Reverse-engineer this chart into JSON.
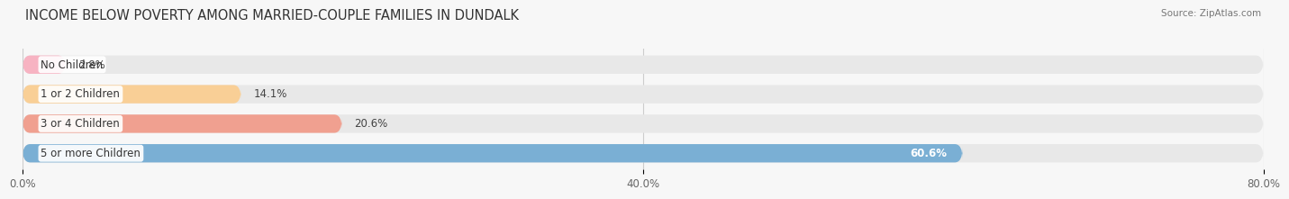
{
  "title": "INCOME BELOW POVERTY AMONG MARRIED-COUPLE FAMILIES IN DUNDALK",
  "source": "Source: ZipAtlas.com",
  "categories": [
    "No Children",
    "1 or 2 Children",
    "3 or 4 Children",
    "5 or more Children"
  ],
  "values": [
    2.8,
    14.1,
    20.6,
    60.6
  ],
  "bar_colors": [
    "#f7b3c2",
    "#f9cf96",
    "#f0a090",
    "#7aafd4"
  ],
  "value_inside": [
    false,
    false,
    false,
    true
  ],
  "xlim": [
    0,
    80
  ],
  "xticks": [
    0.0,
    40.0,
    80.0
  ],
  "xtick_labels": [
    "0.0%",
    "40.0%",
    "80.0%"
  ],
  "background_color": "#f7f7f7",
  "bar_bg_color": "#e8e8e8",
  "title_fontsize": 10.5,
  "label_fontsize": 8.5,
  "value_fontsize": 8.5,
  "tick_fontsize": 8.5
}
